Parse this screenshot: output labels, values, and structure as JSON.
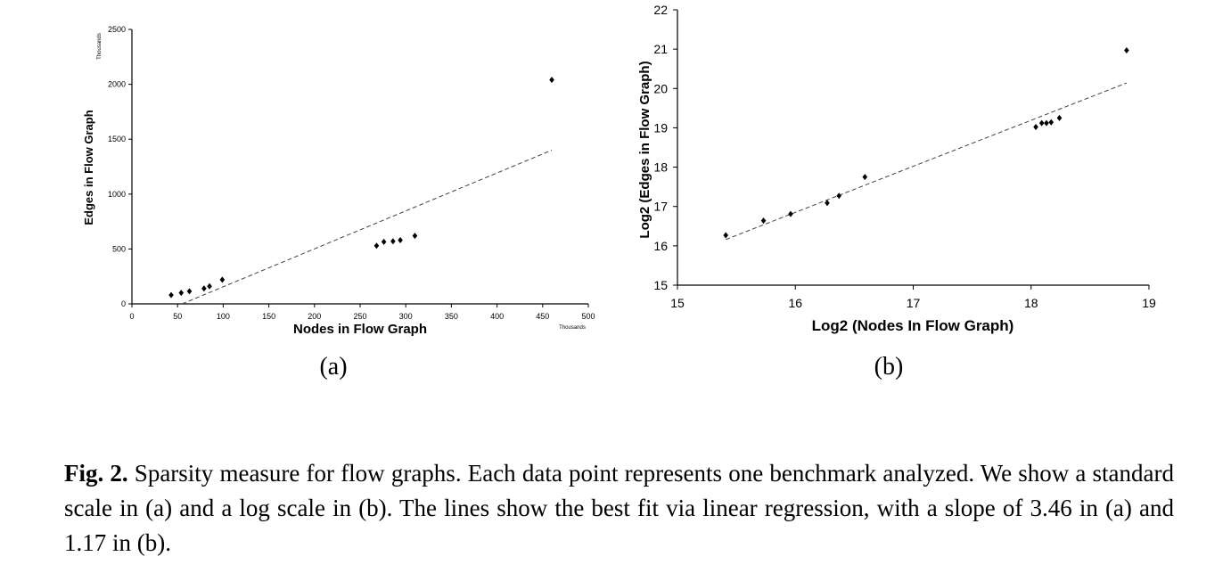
{
  "chart_data": [
    {
      "type": "scatter",
      "panel_label": "(a)",
      "xlabel": "Nodes in Flow Graph",
      "ylabel": "Edges in Flow Graph",
      "x_unit": "Thousands",
      "y_unit": "Thousands",
      "xlim": [
        0,
        500
      ],
      "ylim": [
        0,
        2500
      ],
      "x_ticks": [
        "0",
        "50",
        "100",
        "150",
        "200",
        "250",
        "300",
        "350",
        "400",
        "450",
        "500"
      ],
      "y_ticks": [
        "0",
        "500",
        "1000",
        "1500",
        "2000",
        "2500"
      ],
      "points": [
        {
          "x": 43,
          "y": 80
        },
        {
          "x": 54,
          "y": 100
        },
        {
          "x": 63,
          "y": 115
        },
        {
          "x": 79,
          "y": 140
        },
        {
          "x": 85,
          "y": 160
        },
        {
          "x": 99,
          "y": 220
        },
        {
          "x": 268,
          "y": 530
        },
        {
          "x": 276,
          "y": 565
        },
        {
          "x": 286,
          "y": 570
        },
        {
          "x": 294,
          "y": 580
        },
        {
          "x": 310,
          "y": 620
        },
        {
          "x": 460,
          "y": 2040
        }
      ],
      "fit_line": {
        "slope": 3.46,
        "x1": 55,
        "y1": 0,
        "x2": 460,
        "y2": 1400
      },
      "grid": false,
      "legend": "none"
    },
    {
      "type": "scatter",
      "panel_label": "(b)",
      "xlabel": "Log2 (Nodes In Flow Graph)",
      "ylabel": "Log2 (Edges in Flow Graph)",
      "xlim": [
        15,
        19
      ],
      "ylim": [
        15,
        22
      ],
      "x_ticks": [
        "15",
        "16",
        "17",
        "18",
        "19"
      ],
      "y_ticks": [
        "15",
        "16",
        "17",
        "18",
        "19",
        "20",
        "21",
        "22"
      ],
      "points": [
        {
          "x": 15.41,
          "y": 16.27
        },
        {
          "x": 15.73,
          "y": 16.64
        },
        {
          "x": 15.96,
          "y": 16.81
        },
        {
          "x": 16.27,
          "y": 17.09
        },
        {
          "x": 16.37,
          "y": 17.27
        },
        {
          "x": 16.59,
          "y": 17.75
        },
        {
          "x": 18.04,
          "y": 19.02
        },
        {
          "x": 18.09,
          "y": 19.12
        },
        {
          "x": 18.13,
          "y": 19.12
        },
        {
          "x": 18.17,
          "y": 19.14
        },
        {
          "x": 18.24,
          "y": 19.25
        },
        {
          "x": 18.81,
          "y": 20.97
        }
      ],
      "fit_line": {
        "slope": 1.17,
        "x1": 15.41,
        "y1": 16.16,
        "x2": 18.81,
        "y2": 20.14
      },
      "grid": false,
      "legend": "none"
    }
  ],
  "caption": {
    "label": "Fig. 2.",
    "text": " Sparsity measure for flow graphs. Each data point represents one benchmark analyzed. We show a standard scale in (a) and a log scale in (b). The lines show the best fit via linear regression, with a slope of 3.46 in (a) and 1.17 in (b)."
  }
}
